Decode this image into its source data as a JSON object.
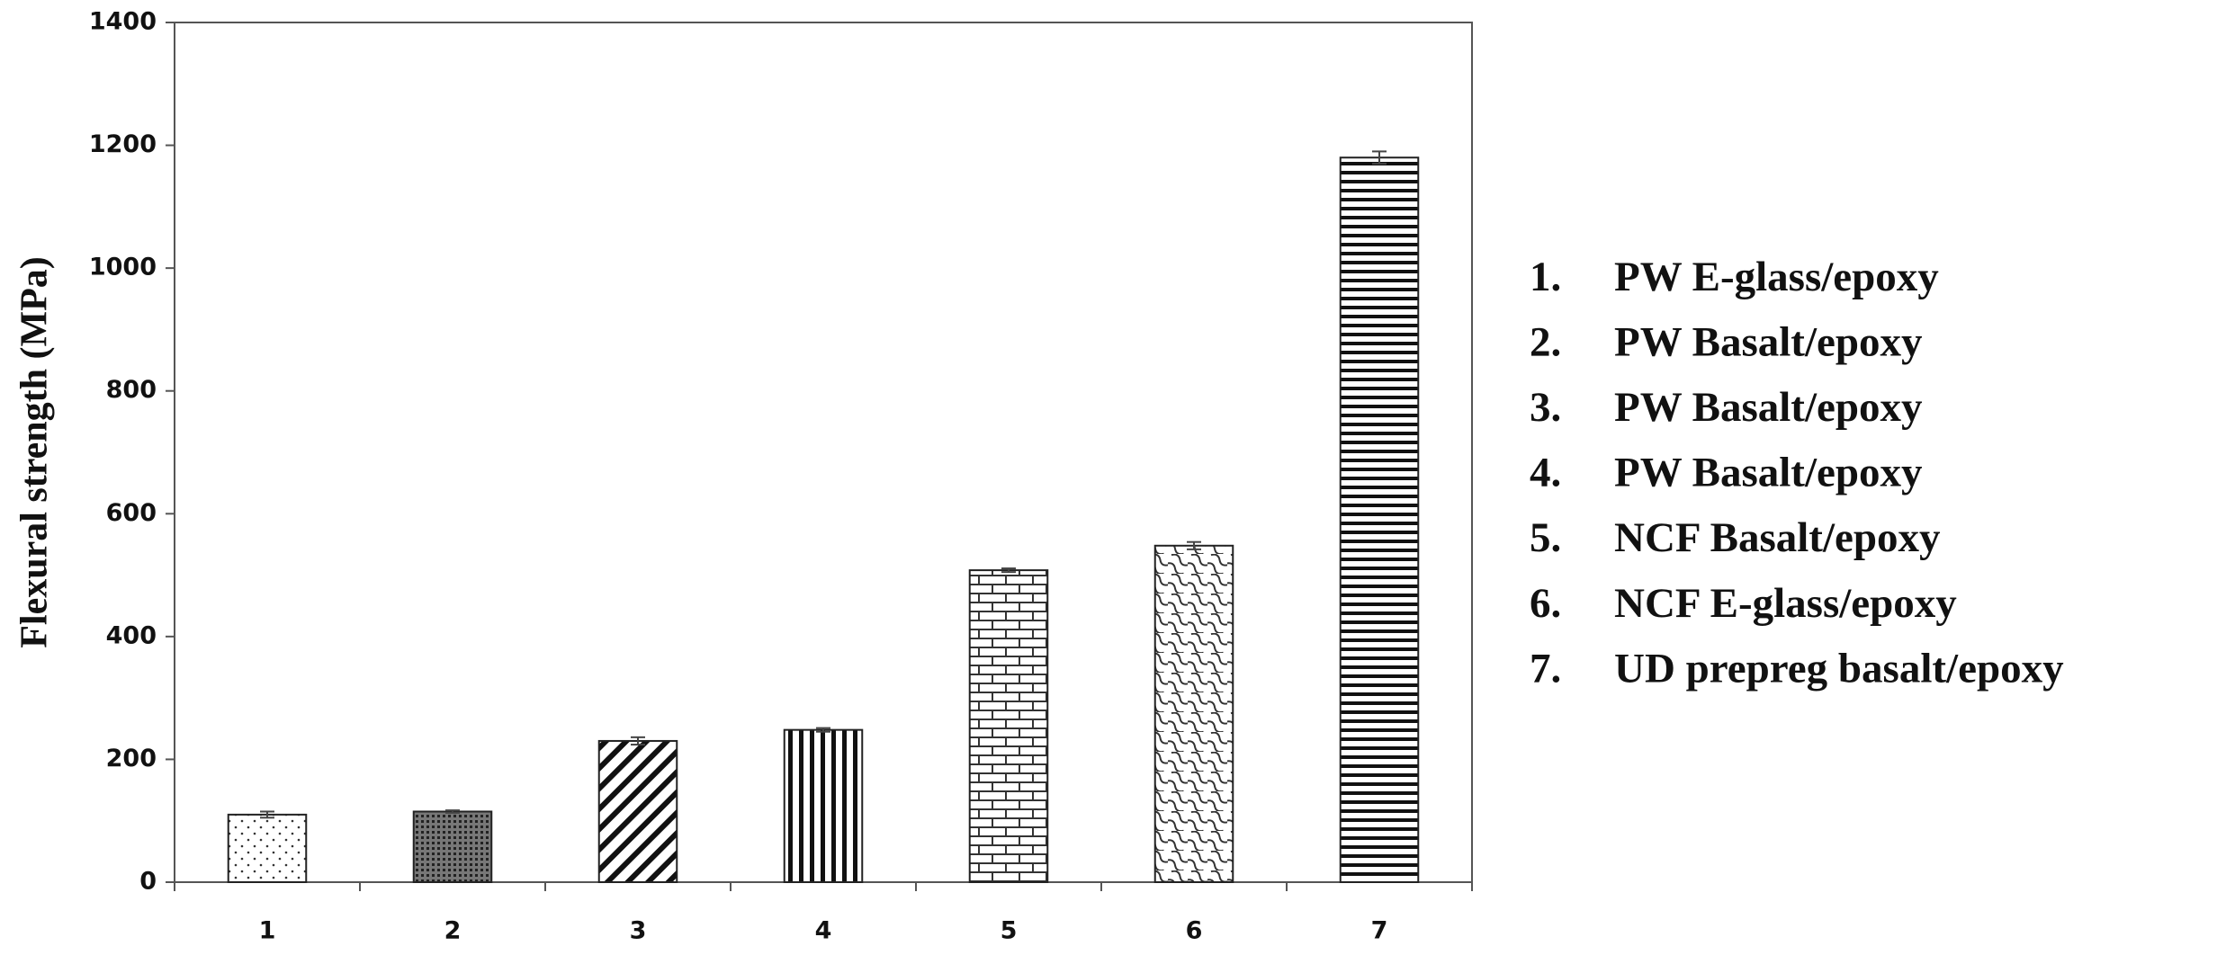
{
  "chart_data": {
    "type": "bar",
    "y_label": "Flexural strength (MPa)",
    "categories": [
      "1",
      "2",
      "3",
      "4",
      "5",
      "6",
      "7"
    ],
    "values": [
      110,
      115,
      230,
      248,
      508,
      548,
      1180
    ],
    "errors": [
      5,
      2,
      6,
      3,
      3,
      6,
      10
    ],
    "ylim": [
      0,
      1400
    ],
    "yticks": [
      0,
      200,
      400,
      600,
      800,
      1000,
      1200,
      1400
    ],
    "grid": false,
    "legend_items": [
      {
        "number": "1.",
        "text": "PW E-glass/epoxy"
      },
      {
        "number": "2.",
        "text": "PW Basalt/epoxy"
      },
      {
        "number": "3.",
        "text": "PW Basalt/epoxy"
      },
      {
        "number": "4.",
        "text": "PW Basalt/epoxy"
      },
      {
        "number": "5.",
        "text": "NCF Basalt/epoxy"
      },
      {
        "number": "6.",
        "text": "NCF E-glass/epoxy"
      },
      {
        "number": "7.",
        "text": "UD prepreg basalt/epoxy"
      }
    ]
  }
}
